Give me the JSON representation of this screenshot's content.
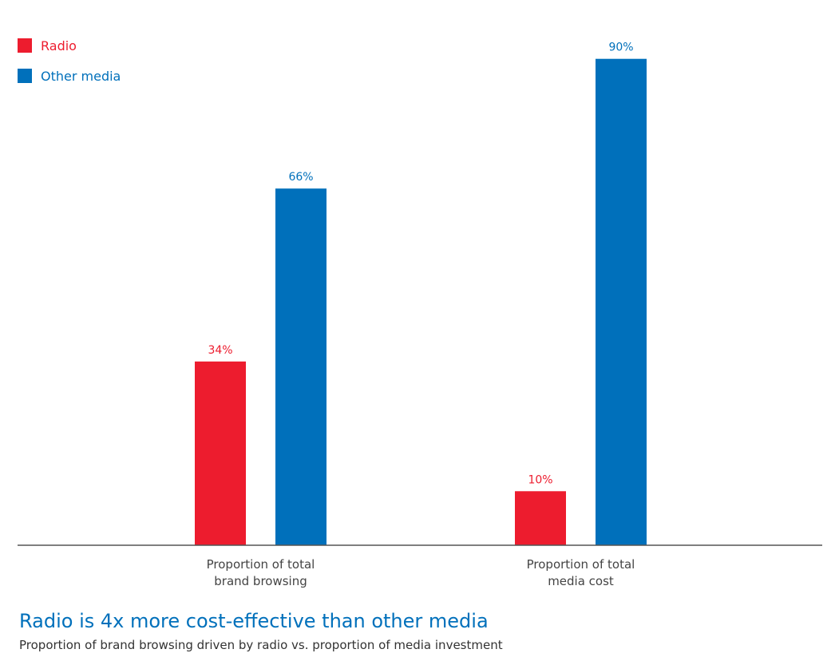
{
  "colors": {
    "radio": "#ED1C2E",
    "other": "#0070BB",
    "axis": "#555555",
    "category_text": "#444444",
    "title": "#0070BB"
  },
  "legend": [
    {
      "name": "Radio",
      "color": "#ED1C2E"
    },
    {
      "name": "Other media",
      "color": "#0070BB"
    }
  ],
  "chart_data": {
    "type": "bar",
    "title": "Radio is 4x more cost-effective than other media",
    "subtitle": "Proportion of brand browsing driven by radio vs. proportion of media investment",
    "categories": [
      [
        "Proportion of total",
        "brand browsing"
      ],
      [
        "Proportion of total",
        "media cost"
      ]
    ],
    "series": [
      {
        "name": "Radio",
        "values": [
          34,
          10
        ],
        "labels": [
          "34%",
          "10%"
        ],
        "color": "#ED1C2E"
      },
      {
        "name": "Other media",
        "values": [
          66,
          90
        ],
        "labels": [
          "66%",
          "90%"
        ],
        "color": "#0070BB"
      }
    ],
    "ylim": [
      0,
      100
    ],
    "grid": false,
    "legend_position": "top-left"
  }
}
